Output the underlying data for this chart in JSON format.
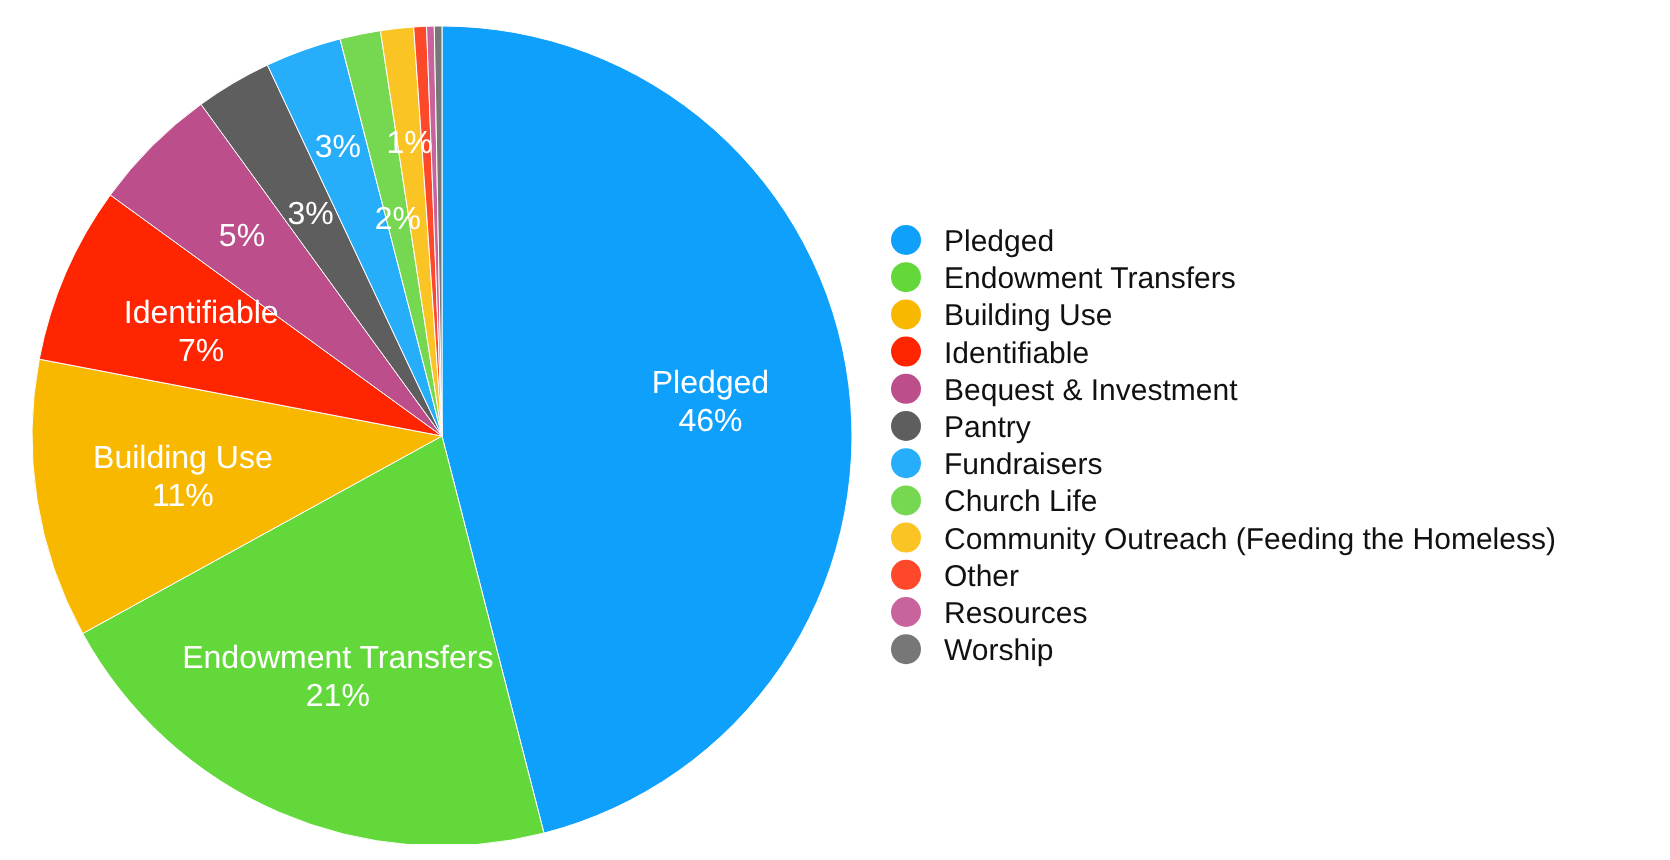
{
  "chart_data": {
    "type": "pie",
    "categories": [
      "Pledged",
      "Endowment Transfers",
      "Building Use",
      "Identifiable",
      "Bequest & Investment",
      "Pantry",
      "Fundraisers",
      "Church Life",
      "Community Outreach (Feeding the Homeless)",
      "Other",
      "Resources",
      "Worship"
    ],
    "values": [
      46,
      21,
      11,
      7,
      5,
      3,
      3,
      1.6,
      1.3,
      0.5,
      0.3,
      0.3
    ],
    "colors": [
      "#0fa0fb",
      "#63d83a",
      "#f9b800",
      "#fe2500",
      "#bd4e8c",
      "#5e5e5e",
      "#27aefb",
      "#75d850",
      "#fbc425",
      "#fd4829",
      "#c9639d",
      "#777777"
    ],
    "value_labels": [
      "Pledged\n46%",
      "Endowment Transfers\n21%",
      "Building Use\n11%",
      "Identifiable\n7%",
      "5%",
      "3%",
      "3%",
      "2%",
      "1%",
      null,
      null,
      null
    ],
    "legend": "right"
  }
}
